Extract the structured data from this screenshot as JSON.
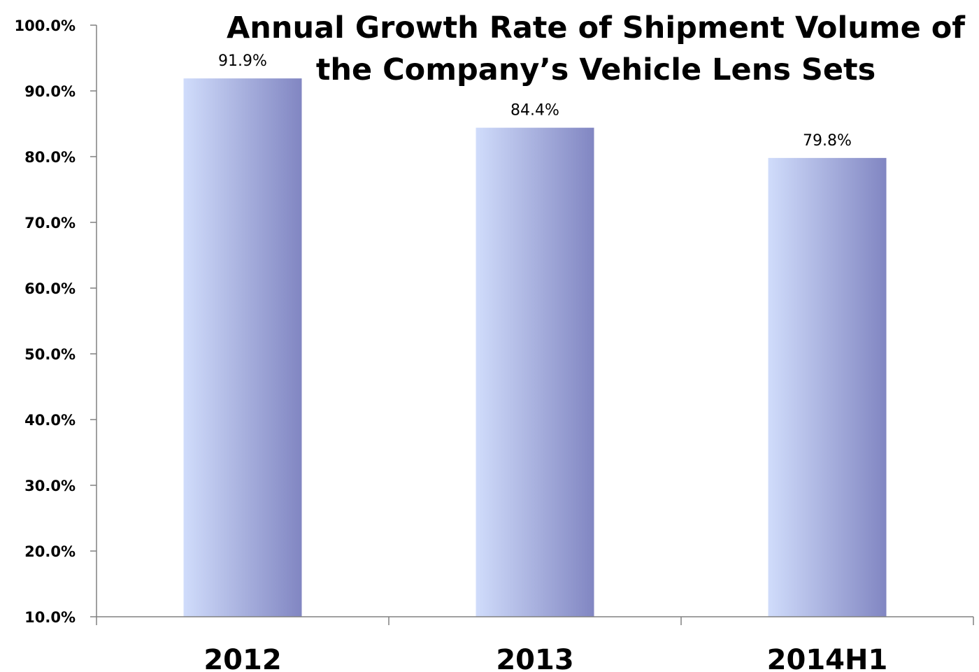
{
  "chart_data": {
    "type": "bar",
    "title_lines": [
      "Annual Growth Rate of Shipment Volume of",
      "the Company’s  Vehicle Lens Sets"
    ],
    "categories": [
      "2012",
      "2013",
      "2014H1"
    ],
    "values": [
      91.9,
      84.4,
      79.8
    ],
    "data_labels": [
      "91.9%",
      "84.4%",
      "79.8%"
    ],
    "ylim": [
      10,
      100
    ],
    "yticks": [
      10,
      20,
      30,
      40,
      50,
      60,
      70,
      80,
      90,
      100
    ],
    "ytick_labels": [
      "10.0%",
      "20.0%",
      "30.0%",
      "40.0%",
      "50.0%",
      "60.0%",
      "70.0%",
      "80.0%",
      "90.0%",
      "100.0%"
    ],
    "grid": false,
    "legend": "none",
    "bar_gradient": [
      "#d0dcfb",
      "#8186c2"
    ]
  }
}
